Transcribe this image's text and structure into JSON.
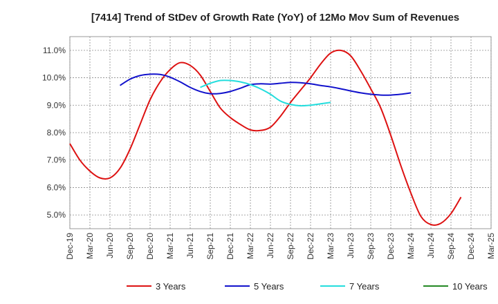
{
  "chart_data": {
    "type": "line",
    "title": "[7414]  Trend of StDev of Growth Rate (YoY) of 12Mo Mov Sum of Revenues",
    "xlabel": "",
    "ylabel": "",
    "x_tick_labels": [
      "Dec-19",
      "Mar-20",
      "Jun-20",
      "Sep-20",
      "Dec-20",
      "Mar-21",
      "Jun-21",
      "Sep-21",
      "Dec-21",
      "Mar-22",
      "Jun-22",
      "Sep-22",
      "Dec-22",
      "Mar-23",
      "Jun-23",
      "Sep-23",
      "Dec-23",
      "Mar-24",
      "Jun-24",
      "Sep-24",
      "Dec-24",
      "Mar-25"
    ],
    "y_tick_labels": [
      "5.0%",
      "6.0%",
      "7.0%",
      "8.0%",
      "9.0%",
      "10.0%",
      "11.0%"
    ],
    "y_ticks": [
      5.0,
      6.0,
      7.0,
      8.0,
      9.0,
      10.0,
      11.0
    ],
    "ylim": [
      4.5,
      11.5
    ],
    "x_count": 21,
    "grid": true,
    "legend_position": "bottom",
    "series": [
      {
        "name": "3 Years",
        "color": "#dd1111",
        "start_index": 0,
        "values": [
          7.6,
          7.0,
          6.6,
          6.35,
          6.35,
          6.7,
          7.4,
          8.3,
          9.2,
          9.85,
          10.3,
          10.55,
          10.45,
          10.1,
          9.5,
          8.9,
          8.55,
          8.3,
          8.1,
          8.08,
          8.2,
          8.6,
          9.1,
          9.55,
          10.0,
          10.5,
          10.9,
          11.0,
          10.8,
          10.25,
          9.6,
          8.9,
          7.9,
          6.8,
          5.8,
          4.95,
          4.65,
          4.7,
          5.05,
          5.65
        ]
      },
      {
        "name": "5 Years",
        "color": "#1111cc",
        "start_index": 5,
        "values": [
          9.72,
          9.95,
          10.08,
          10.13,
          10.12,
          10.02,
          9.85,
          9.65,
          9.5,
          9.42,
          9.43,
          9.5,
          9.62,
          9.75,
          9.78,
          9.77,
          9.8,
          9.83,
          9.82,
          9.78,
          9.72,
          9.67,
          9.6,
          9.52,
          9.45,
          9.4,
          9.37,
          9.37,
          9.4,
          9.45
        ]
      },
      {
        "name": "7 Years",
        "color": "#22dddd",
        "start_index": 13,
        "values": [
          9.65,
          9.8,
          9.9,
          9.9,
          9.85,
          9.75,
          9.6,
          9.4,
          9.15,
          9.03,
          8.98,
          9.0,
          9.05,
          9.1
        ]
      },
      {
        "name": "10 Years",
        "color": "#228822",
        "start_index": 0,
        "values": []
      }
    ]
  }
}
